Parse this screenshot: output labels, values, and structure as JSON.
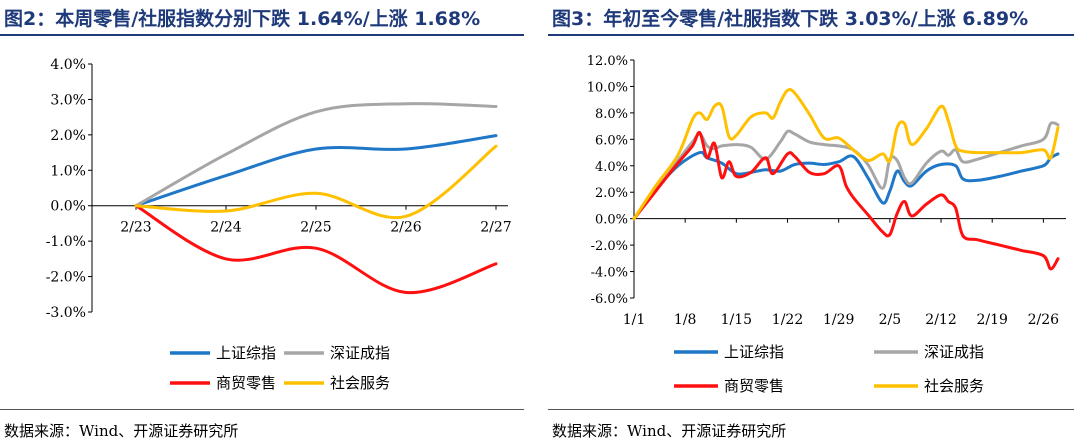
{
  "chart_data": [
    {
      "type": "line",
      "title": "图2：本周零售/社服指数分别下跌 1.64%/上涨 1.68%",
      "categories": [
        "2/23",
        "2/24",
        "2/25",
        "2/26",
        "2/27"
      ],
      "ylim": [
        -3,
        4
      ],
      "yticks": [
        "4.0%",
        "3.0%",
        "2.0%",
        "1.0%",
        "0.0%",
        "-1.0%",
        "-2.0%",
        "-3.0%"
      ],
      "ytick_values": [
        4,
        3,
        2,
        1,
        0,
        -1,
        -2,
        -3
      ],
      "series": [
        {
          "name": "上证综指",
          "color": "#1f77c8",
          "values": [
            0.0,
            0.85,
            1.6,
            1.6,
            1.98
          ]
        },
        {
          "name": "深证成指",
          "color": "#a6a6a6",
          "values": [
            0.0,
            1.45,
            2.65,
            2.88,
            2.8
          ]
        },
        {
          "name": "商贸零售",
          "color": "#ff1010",
          "values": [
            0.0,
            -1.5,
            -1.2,
            -2.45,
            -1.64
          ]
        },
        {
          "name": "社会服务",
          "color": "#ffc000",
          "values": [
            0.0,
            -0.15,
            0.35,
            -0.3,
            1.68
          ]
        }
      ],
      "legend": [
        "上证综指",
        "深证成指",
        "商贸零售",
        "社会服务"
      ],
      "source": "数据来源：Wind、开源证券研究所"
    },
    {
      "type": "line",
      "title": "图3：年初至今零售/社服指数下跌 3.03%/上涨 6.89%",
      "xticks": [
        "1/1",
        "1/8",
        "1/15",
        "1/22",
        "1/29",
        "2/5",
        "2/12",
        "2/19",
        "2/26"
      ],
      "x_range": [
        0,
        58
      ],
      "ylim": [
        -6,
        12
      ],
      "yticks": [
        "12.0%",
        "10.0%",
        "8.0%",
        "6.0%",
        "4.0%",
        "2.0%",
        "0.0%",
        "-2.0%",
        "-4.0%",
        "-6.0%"
      ],
      "ytick_values": [
        12,
        10,
        8,
        6,
        4,
        2,
        0,
        -2,
        -4,
        -6
      ],
      "series": [
        {
          "name": "上证综指",
          "color": "#1f77c8",
          "points": [
            [
              0,
              0
            ],
            [
              3,
              2.2
            ],
            [
              6,
              4
            ],
            [
              9,
              5
            ],
            [
              10,
              4.6
            ],
            [
              12,
              4.2
            ],
            [
              14,
              3.4
            ],
            [
              16,
              3.5
            ],
            [
              18,
              3.7
            ],
            [
              20,
              3.6
            ],
            [
              22,
              4.1
            ],
            [
              24,
              4.2
            ],
            [
              26,
              4.1
            ],
            [
              28,
              4.3
            ],
            [
              30,
              4.7
            ],
            [
              32,
              3.1
            ],
            [
              34,
              1.2
            ],
            [
              35,
              2.1
            ],
            [
              36,
              3.6
            ],
            [
              37,
              2.8
            ],
            [
              38,
              2.5
            ],
            [
              40,
              3.6
            ],
            [
              42,
              4.1
            ],
            [
              44,
              4
            ],
            [
              45,
              3
            ],
            [
              47,
              2.9
            ],
            [
              50,
              3.2
            ],
            [
              53,
              3.6
            ],
            [
              56,
              4
            ],
            [
              57,
              4.6
            ],
            [
              58,
              4.9
            ]
          ]
        },
        {
          "name": "深证成指",
          "color": "#a6a6a6",
          "points": [
            [
              0,
              0
            ],
            [
              3,
              2.3
            ],
            [
              6,
              4.4
            ],
            [
              8,
              5.8
            ],
            [
              9,
              6.4
            ],
            [
              10,
              5.5
            ],
            [
              11,
              5.3
            ],
            [
              12,
              5.5
            ],
            [
              14,
              5.6
            ],
            [
              16,
              5.4
            ],
            [
              18,
              4.5
            ],
            [
              20,
              5.8
            ],
            [
              21,
              6.6
            ],
            [
              22,
              6.4
            ],
            [
              24,
              5.8
            ],
            [
              26,
              5.6
            ],
            [
              28,
              5.5
            ],
            [
              30,
              5.2
            ],
            [
              32,
              4.1
            ],
            [
              34,
              2.3
            ],
            [
              35,
              4.5
            ],
            [
              36,
              4.4
            ],
            [
              37,
              3.1
            ],
            [
              38,
              2.7
            ],
            [
              40,
              4.2
            ],
            [
              42,
              5.1
            ],
            [
              43,
              4.8
            ],
            [
              44,
              5.2
            ],
            [
              45,
              4.3
            ],
            [
              47,
              4.5
            ],
            [
              50,
              5
            ],
            [
              53,
              5.5
            ],
            [
              56,
              6
            ],
            [
              57,
              7.2
            ],
            [
              58,
              7.1
            ]
          ]
        },
        {
          "name": "商贸零售",
          "color": "#ff1010",
          "points": [
            [
              0,
              0
            ],
            [
              3,
              2.1
            ],
            [
              6,
              4.2
            ],
            [
              8,
              5.5
            ],
            [
              9,
              6.5
            ],
            [
              10,
              4.6
            ],
            [
              11,
              5.7
            ],
            [
              12,
              3.1
            ],
            [
              13,
              4.3
            ],
            [
              14,
              3.2
            ],
            [
              16,
              3.5
            ],
            [
              18,
              4.6
            ],
            [
              19,
              3.4
            ],
            [
              21,
              4.9
            ],
            [
              22,
              4.7
            ],
            [
              24,
              3.5
            ],
            [
              26,
              3.4
            ],
            [
              28,
              4
            ],
            [
              29,
              2.5
            ],
            [
              30,
              1.6
            ],
            [
              32,
              0.3
            ],
            [
              34,
              -1
            ],
            [
              35,
              -1.2
            ],
            [
              36,
              0.4
            ],
            [
              37,
              1.3
            ],
            [
              38,
              0.2
            ],
            [
              40,
              1.1
            ],
            [
              42,
              1.8
            ],
            [
              43,
              1.3
            ],
            [
              44,
              0.8
            ],
            [
              45,
              -1.3
            ],
            [
              47,
              -1.6
            ],
            [
              50,
              -2
            ],
            [
              53,
              -2.4
            ],
            [
              56,
              -2.8
            ],
            [
              57,
              -3.8
            ],
            [
              58,
              -3.03
            ]
          ]
        },
        {
          "name": "社会服务",
          "color": "#ffc000",
          "points": [
            [
              0,
              0
            ],
            [
              3,
              2.5
            ],
            [
              6,
              4.8
            ],
            [
              8,
              7.5
            ],
            [
              9,
              8
            ],
            [
              10,
              7.5
            ],
            [
              11,
              8.5
            ],
            [
              12,
              8.5
            ],
            [
              13,
              6.2
            ],
            [
              14,
              6.3
            ],
            [
              16,
              7.7
            ],
            [
              18,
              8
            ],
            [
              19,
              7.6
            ],
            [
              20,
              8.8
            ],
            [
              21,
              9.7
            ],
            [
              22,
              9.5
            ],
            [
              24,
              7.9
            ],
            [
              26,
              6.1
            ],
            [
              28,
              6.1
            ],
            [
              30,
              5.2
            ],
            [
              32,
              4.4
            ],
            [
              34,
              4.9
            ],
            [
              35,
              4.4
            ],
            [
              36,
              6.9
            ],
            [
              37,
              7.2
            ],
            [
              38,
              5.6
            ],
            [
              40,
              6.8
            ],
            [
              42,
              8.5
            ],
            [
              43,
              7.4
            ],
            [
              44,
              5.5
            ],
            [
              45,
              5.1
            ],
            [
              47,
              5
            ],
            [
              50,
              5
            ],
            [
              53,
              5
            ],
            [
              56,
              5.2
            ],
            [
              57,
              4.6
            ],
            [
              58,
              6.89
            ]
          ]
        }
      ],
      "legend": [
        "上证综指",
        "深证成指",
        "商贸零售",
        "社会服务"
      ],
      "source": "数据来源：Wind、开源证券研究所"
    }
  ]
}
